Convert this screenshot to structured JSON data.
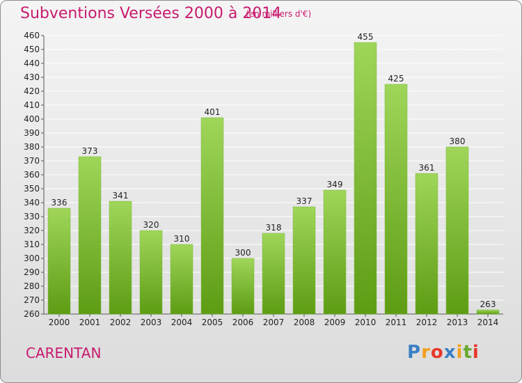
{
  "title": "Subventions Versées 2000 à 2014",
  "subtitle": "(en milliers d'€)",
  "city": "CARENTAN",
  "logo": {
    "letters": [
      "P",
      "r",
      "o",
      "x",
      "i",
      "t",
      "i"
    ],
    "colors": [
      "#3a7fc4",
      "#f2a01e",
      "#e8372b",
      "#3a7fc4",
      "#f2a01e",
      "#6aa82e",
      "#e8372b"
    ]
  },
  "colors": {
    "bar_top": "#9fd65a",
    "bar_bottom": "#5e9c14",
    "accent": "#c81a6e"
  },
  "chart_data": {
    "type": "bar",
    "title": "Subventions Versées 2000 à 2014",
    "subtitle": "(en milliers d'€)",
    "categories": [
      "2000",
      "2001",
      "2002",
      "2003",
      "2004",
      "2005",
      "2006",
      "2007",
      "2008",
      "2009",
      "2010",
      "2011",
      "2012",
      "2013",
      "2014"
    ],
    "values": [
      336,
      373,
      341,
      320,
      310,
      401,
      300,
      318,
      337,
      349,
      455,
      425,
      361,
      380,
      263
    ],
    "ylim": [
      260,
      460
    ],
    "yticks": [
      260,
      270,
      280,
      290,
      300,
      310,
      320,
      330,
      340,
      350,
      360,
      370,
      380,
      390,
      400,
      410,
      420,
      430,
      440,
      450,
      460
    ],
    "grid": true,
    "xlabel": "",
    "ylabel": ""
  }
}
